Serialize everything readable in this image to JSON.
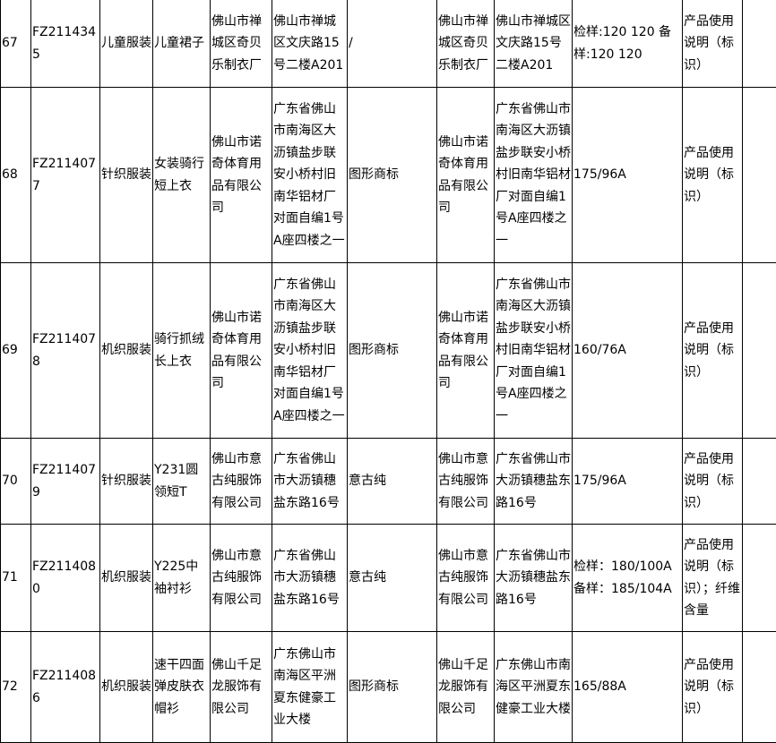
{
  "rows": [
    {
      "no": "67",
      "code": "FZ2114345",
      "category": "儿童服装",
      "product": "儿童裙子",
      "maker": "佛山市禅城区奇贝乐制衣厂",
      "maker_addr": "佛山市禅城区文庆路15号二楼A201",
      "trademark": "/",
      "seller": "佛山市禅城区奇贝乐制衣厂",
      "seller_addr": "佛山市禅城区文庆路15号二楼A201",
      "spec": "检样:120 120 备样:120 120",
      "issue": "产品使用说明（标识）",
      "extra": ""
    },
    {
      "no": "68",
      "code": "FZ2114077",
      "category": "针织服装",
      "product": "女装骑行短上衣",
      "maker": "佛山市诺奇体育用品有限公司",
      "maker_addr": "广东省佛山市南海区大沥镇盐步联安小桥村旧南华铝材厂对面自编1号A座四楼之一",
      "trademark": "图形商标",
      "seller": "佛山市诺奇体育用品有限公司",
      "seller_addr": "广东省佛山市南海区大沥镇盐步联安小桥村旧南华铝材厂对面自编1号A座四楼之一",
      "spec": "175/96A",
      "issue": "产品使用说明（标识）",
      "extra": ""
    },
    {
      "no": "69",
      "code": "FZ2114078",
      "category": "机织服装",
      "product": "骑行抓绒长上衣",
      "maker": "佛山市诺奇体育用品有限公司",
      "maker_addr": "广东省佛山市南海区大沥镇盐步联安小桥村旧南华铝材厂对面自编1号A座四楼之一",
      "trademark": "图形商标",
      "seller": "佛山市诺奇体育用品有限公司",
      "seller_addr": "广东省佛山市南海区大沥镇盐步联安小桥村旧南华铝材厂对面自编1号A座四楼之一",
      "spec": "160/76A",
      "issue": "产品使用说明（标识）",
      "extra": ""
    },
    {
      "no": "70",
      "code": "FZ2114079",
      "category": "针织服装",
      "product": "Y231圆领短T",
      "maker": "佛山市意古纯服饰有限公司",
      "maker_addr": "广东省佛山市大沥镇穗盐东路16号",
      "trademark": "意古纯",
      "seller": "佛山市意古纯服饰有限公司",
      "seller_addr": "广东省佛山市大沥镇穗盐东路16号",
      "spec": "175/96A",
      "issue": "产品使用说明（标识）",
      "extra": ""
    },
    {
      "no": "71",
      "code": "FZ2114080",
      "category": "机织服装",
      "product": "Y225中袖衬衫",
      "maker": "佛山市意古纯服饰有限公司",
      "maker_addr": "广东省佛山市大沥镇穗盐东路16号",
      "trademark": "意古纯",
      "seller": "佛山市意古纯服饰有限公司",
      "seller_addr": "广东省佛山市大沥镇穗盐东路16号",
      "spec": "检样：180/100A 备样：185/104A",
      "issue": "产品使用说明（标识）；纤维含量",
      "extra": ""
    },
    {
      "no": "72",
      "code": "FZ2114086",
      "category": "机织服装",
      "product": "速干四面弹皮肤衣帽衫",
      "maker": "佛山千足龙服饰有限公司",
      "maker_addr": "广东佛山市南海区平洲夏东健豪工业大楼",
      "trademark": "图形商标",
      "seller": "佛山千足龙服饰有限公司",
      "seller_addr": "广东佛山市南海区平洲夏东健豪工业大楼",
      "spec": "165/88A",
      "issue": "产品使用说明（标识）",
      "extra": ""
    }
  ]
}
